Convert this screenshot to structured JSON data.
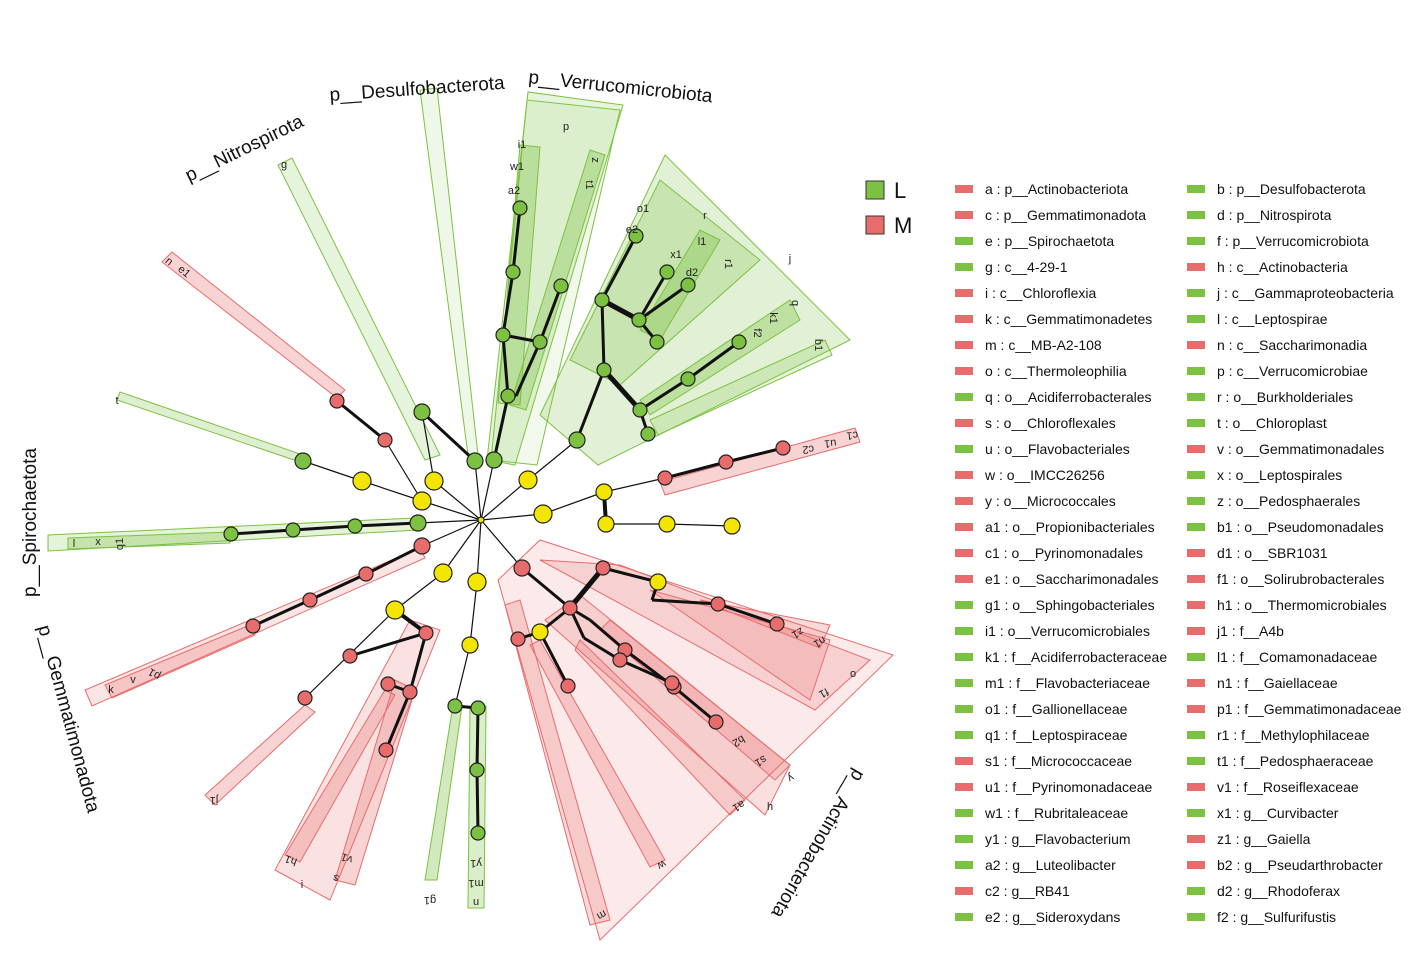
{
  "groups": [
    {
      "key": "L",
      "color": "#7cc142"
    },
    {
      "key": "M",
      "color": "#e86c6c"
    }
  ],
  "phylum_labels": [
    "p__Verrucomicrobiota",
    "p__Desulfobacterota",
    "p__Nitrospirota",
    "p__Spirochaetota",
    "p__Gemmatimonadota",
    "p__Actinobacteriota"
  ],
  "legend_entries": [
    {
      "text": "a : p__Actinobacteriota",
      "group": "M"
    },
    {
      "text": "b : p__Desulfobacterota",
      "group": "L"
    },
    {
      "text": "c : p__Gemmatimonadota",
      "group": "M"
    },
    {
      "text": "d : p__Nitrospirota",
      "group": "L"
    },
    {
      "text": "e : p__Spirochaetota",
      "group": "L"
    },
    {
      "text": "f : p__Verrucomicrobiota",
      "group": "L"
    },
    {
      "text": "g : c__4-29-1",
      "group": "L"
    },
    {
      "text": "h : c__Actinobacteria",
      "group": "M"
    },
    {
      "text": "i : c__Chloroflexia",
      "group": "M"
    },
    {
      "text": "j : c__Gammaproteobacteria",
      "group": "L"
    },
    {
      "text": "k : c__Gemmatimonadetes",
      "group": "M"
    },
    {
      "text": "l : c__Leptospirae",
      "group": "L"
    },
    {
      "text": "m : c__MB-A2-108",
      "group": "M"
    },
    {
      "text": "n : c__Saccharimonadia",
      "group": "M"
    },
    {
      "text": "o : c__Thermoleophilia",
      "group": "M"
    },
    {
      "text": "p : c__Verrucomicrobiae",
      "group": "L"
    },
    {
      "text": "q : o__Acidiferrobacterales",
      "group": "L"
    },
    {
      "text": "r : o__Burkholderiales",
      "group": "L"
    },
    {
      "text": "s : o__Chloroflexales",
      "group": "M"
    },
    {
      "text": "t : o__Chloroplast",
      "group": "L"
    },
    {
      "text": "u : o__Flavobacteriales",
      "group": "L"
    },
    {
      "text": "v : o__Gemmatimonadales",
      "group": "M"
    },
    {
      "text": "w : o__IMCC26256",
      "group": "M"
    },
    {
      "text": "x : o__Leptospirales",
      "group": "L"
    },
    {
      "text": "y : o__Micrococcales",
      "group": "M"
    },
    {
      "text": "z : o__Pedosphaerales",
      "group": "L"
    },
    {
      "text": "a1 : o__Propionibacteriales",
      "group": "M"
    },
    {
      "text": "b1 : o__Pseudomonadales",
      "group": "L"
    },
    {
      "text": "c1 : o__Pyrinomonadales",
      "group": "M"
    },
    {
      "text": "d1 : o__SBR1031",
      "group": "M"
    },
    {
      "text": "e1 : o__Saccharimonadales",
      "group": "M"
    },
    {
      "text": "f1 : o__Solirubrobacterales",
      "group": "M"
    },
    {
      "text": "g1 : o__Sphingobacteriales",
      "group": "L"
    },
    {
      "text": "h1 : o__Thermomicrobiales",
      "group": "M"
    },
    {
      "text": "i1 : o__Verrucomicrobiales",
      "group": "L"
    },
    {
      "text": "j1 : f__A4b",
      "group": "M"
    },
    {
      "text": "k1 : f__Acidiferrobacteraceae",
      "group": "L"
    },
    {
      "text": "l1 : f__Comamonadaceae",
      "group": "L"
    },
    {
      "text": "m1 : f__Flavobacteriaceae",
      "group": "L"
    },
    {
      "text": "n1 : f__Gaiellaceae",
      "group": "M"
    },
    {
      "text": "o1 : f__Gallionellaceae",
      "group": "L"
    },
    {
      "text": "p1 : f__Gemmatimonadaceae",
      "group": "M"
    },
    {
      "text": "q1 : f__Leptospiraceae",
      "group": "L"
    },
    {
      "text": "r1 : f__Methylophilaceae",
      "group": "L"
    },
    {
      "text": "s1 : f__Micrococcaceae",
      "group": "M"
    },
    {
      "text": "t1 : f__Pedosphaeraceae",
      "group": "L"
    },
    {
      "text": "u1 : f__Pyrinomonadaceae",
      "group": "M"
    },
    {
      "text": "v1 : f__Roseiflexaceae",
      "group": "M"
    },
    {
      "text": "w1 : f__Rubritaleaceae",
      "group": "L"
    },
    {
      "text": "x1 : g__Curvibacter",
      "group": "L"
    },
    {
      "text": "y1 : g__Flavobacterium",
      "group": "L"
    },
    {
      "text": "z1 : g__Gaiella",
      "group": "M"
    },
    {
      "text": "a2 : g__Luteolibacter",
      "group": "L"
    },
    {
      "text": "b2 : g__Pseudarthrobacter",
      "group": "M"
    },
    {
      "text": "c2 : g__RB41",
      "group": "M"
    },
    {
      "text": "d2 : g__Rhodoferax",
      "group": "L"
    },
    {
      "text": "e2 : g__Sideroxydans",
      "group": "L"
    },
    {
      "text": "f2 : g__Sulfurifustis",
      "group": "L"
    }
  ],
  "clade_labels": [
    "p",
    "i1",
    "w1",
    "a2",
    "z",
    "t1",
    "r",
    "j",
    "o1",
    "e2",
    "l1",
    "x1",
    "d2",
    "r1",
    "q",
    "k1",
    "f2",
    "b1",
    "g",
    "n",
    "e1",
    "t",
    "l",
    "x",
    "q1",
    "c1",
    "u1",
    "c2",
    "k",
    "v",
    "p1",
    "j1",
    "h1",
    "s",
    "v1",
    "i",
    "g1",
    "u",
    "m1",
    "y1",
    "w",
    "m",
    "a1",
    "h",
    "y",
    "s1",
    "b2",
    "o",
    "f1",
    "n1",
    "z1"
  ]
}
